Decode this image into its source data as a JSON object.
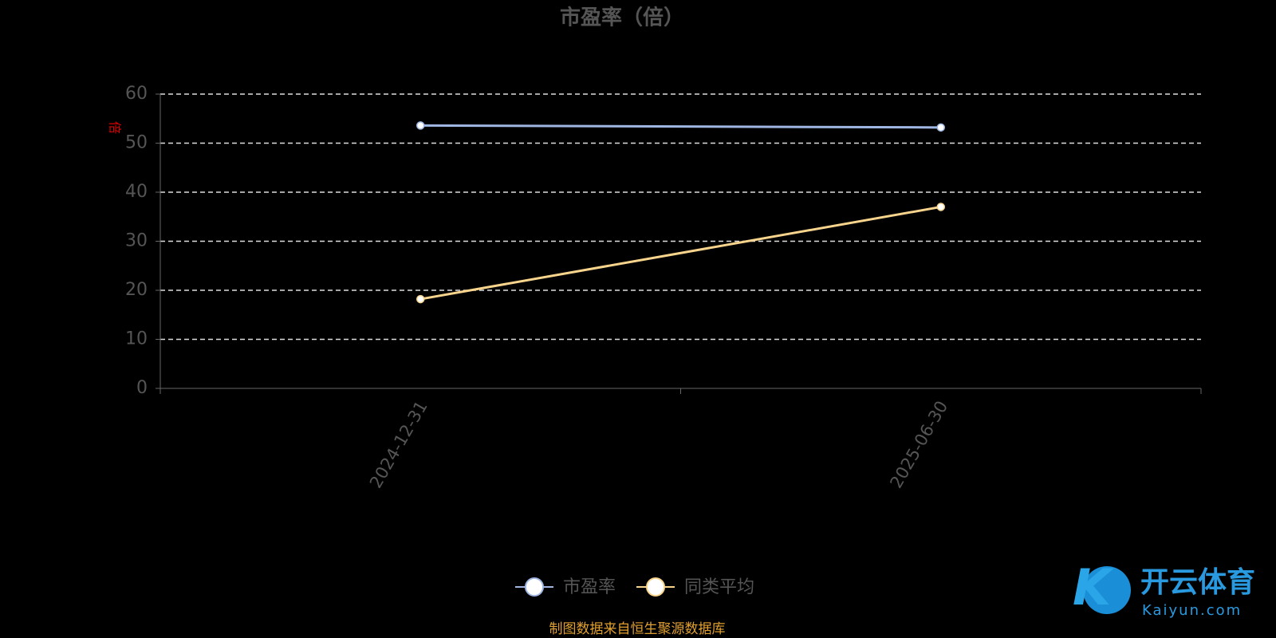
{
  "chart_data": {
    "type": "line",
    "title": "市盈率（倍）",
    "y_label": "倍",
    "categories": [
      "2024-12-31",
      "2025-06-30"
    ],
    "series": [
      {
        "name": "市盈率",
        "color": "#9fb6e2",
        "values": [
          53.6,
          53.2
        ]
      },
      {
        "name": "同类平均",
        "color": "#f8d48c",
        "values": [
          18.2,
          37.0
        ]
      }
    ],
    "ylim": [
      0,
      60
    ],
    "yticks": [
      0,
      10,
      20,
      30,
      40,
      50,
      60
    ],
    "grid": true,
    "legend": "bottom",
    "source": "制图数据来自恒生聚源数据库",
    "watermark": {
      "brand": "开云体育",
      "site": "Kaiyun.com"
    }
  }
}
